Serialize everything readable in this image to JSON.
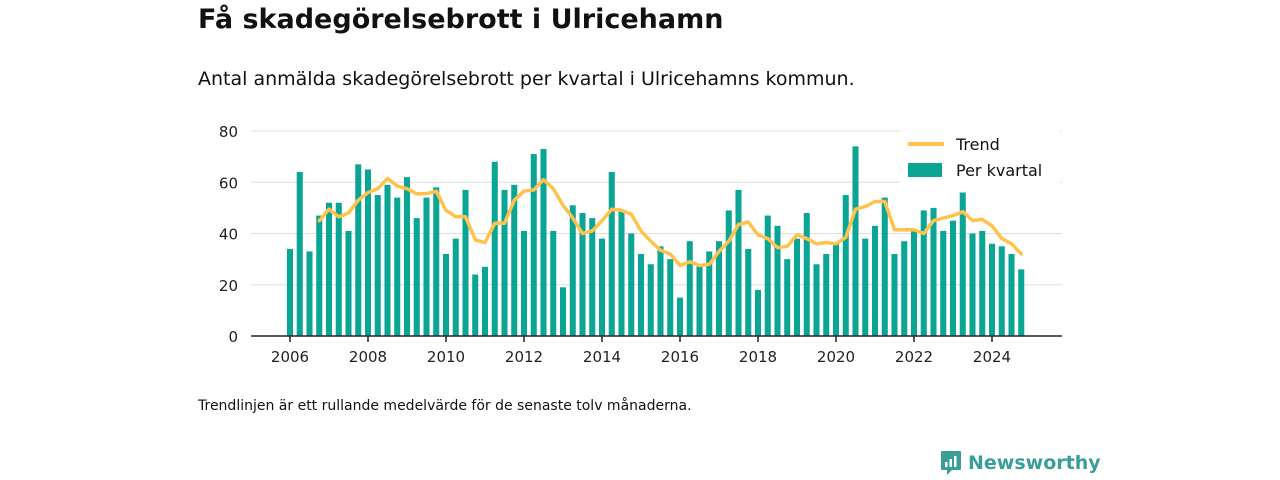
{
  "title": "Få skadegörelsebrott i Ulricehamn",
  "subtitle": "Antal anmälda skadegörelsebrott per kvartal i Ulricehamns kommun.",
  "note": "Trendlinjen är ett rullande medelvärde för de senaste tolv månaderna.",
  "brand": {
    "name": "Newsworthy",
    "color": "#3a9e98"
  },
  "colors": {
    "bars": "#0ba596",
    "trend": "#ffc34d",
    "grid": "#dddddd",
    "axis": "#222222"
  },
  "chart_data": {
    "type": "bar",
    "x_start": 2006,
    "x_ticks": [
      "2006",
      "2008",
      "2010",
      "2012",
      "2014",
      "2016",
      "2018",
      "2020",
      "2022",
      "2024"
    ],
    "ylim": [
      0,
      80
    ],
    "y_ticks": [
      0,
      20,
      40,
      60,
      80
    ],
    "grid": true,
    "legend_position": "top-right",
    "series": [
      {
        "name": "Per kvartal",
        "type": "bar",
        "values": [
          34,
          64,
          33,
          47,
          52,
          52,
          41,
          67,
          65,
          55,
          59,
          54,
          62,
          46,
          54,
          58,
          32,
          38,
          57,
          24,
          27,
          68,
          57,
          59,
          41,
          71,
          73,
          41,
          19,
          51,
          48,
          46,
          38,
          64,
          49,
          40,
          32,
          28,
          35,
          30,
          15,
          37,
          28,
          33,
          37,
          49,
          57,
          34,
          18,
          47,
          43,
          30,
          38,
          48,
          28,
          32,
          36,
          55,
          74,
          38,
          43,
          54,
          32,
          37,
          41,
          49,
          50,
          41,
          45,
          56,
          40,
          41,
          36,
          35,
          32,
          26
        ]
      },
      {
        "name": "Trend",
        "type": "line",
        "values": [
          null,
          null,
          null,
          45,
          49.5,
          46.5,
          48,
          53,
          56,
          57.5,
          61.5,
          58.5,
          57.5,
          55.5,
          55.5,
          56.5,
          49,
          46.5,
          46.5,
          37.5,
          36.5,
          44,
          44,
          53,
          56.5,
          57,
          61,
          57.5,
          51,
          46,
          40,
          41,
          45,
          49.5,
          49,
          47.5,
          41,
          37,
          33.5,
          32,
          27.5,
          29,
          27.5,
          28,
          33,
          37,
          43.5,
          44.5,
          39.5,
          38,
          34.5,
          35,
          39.5,
          38,
          36,
          36.5,
          36,
          38.5,
          49.5,
          50.5,
          52.5,
          52.5,
          41.5,
          41.5,
          41.5,
          40,
          45,
          46,
          47,
          48.5,
          45,
          45.5,
          43,
          38,
          36,
          32
        ]
      }
    ]
  }
}
